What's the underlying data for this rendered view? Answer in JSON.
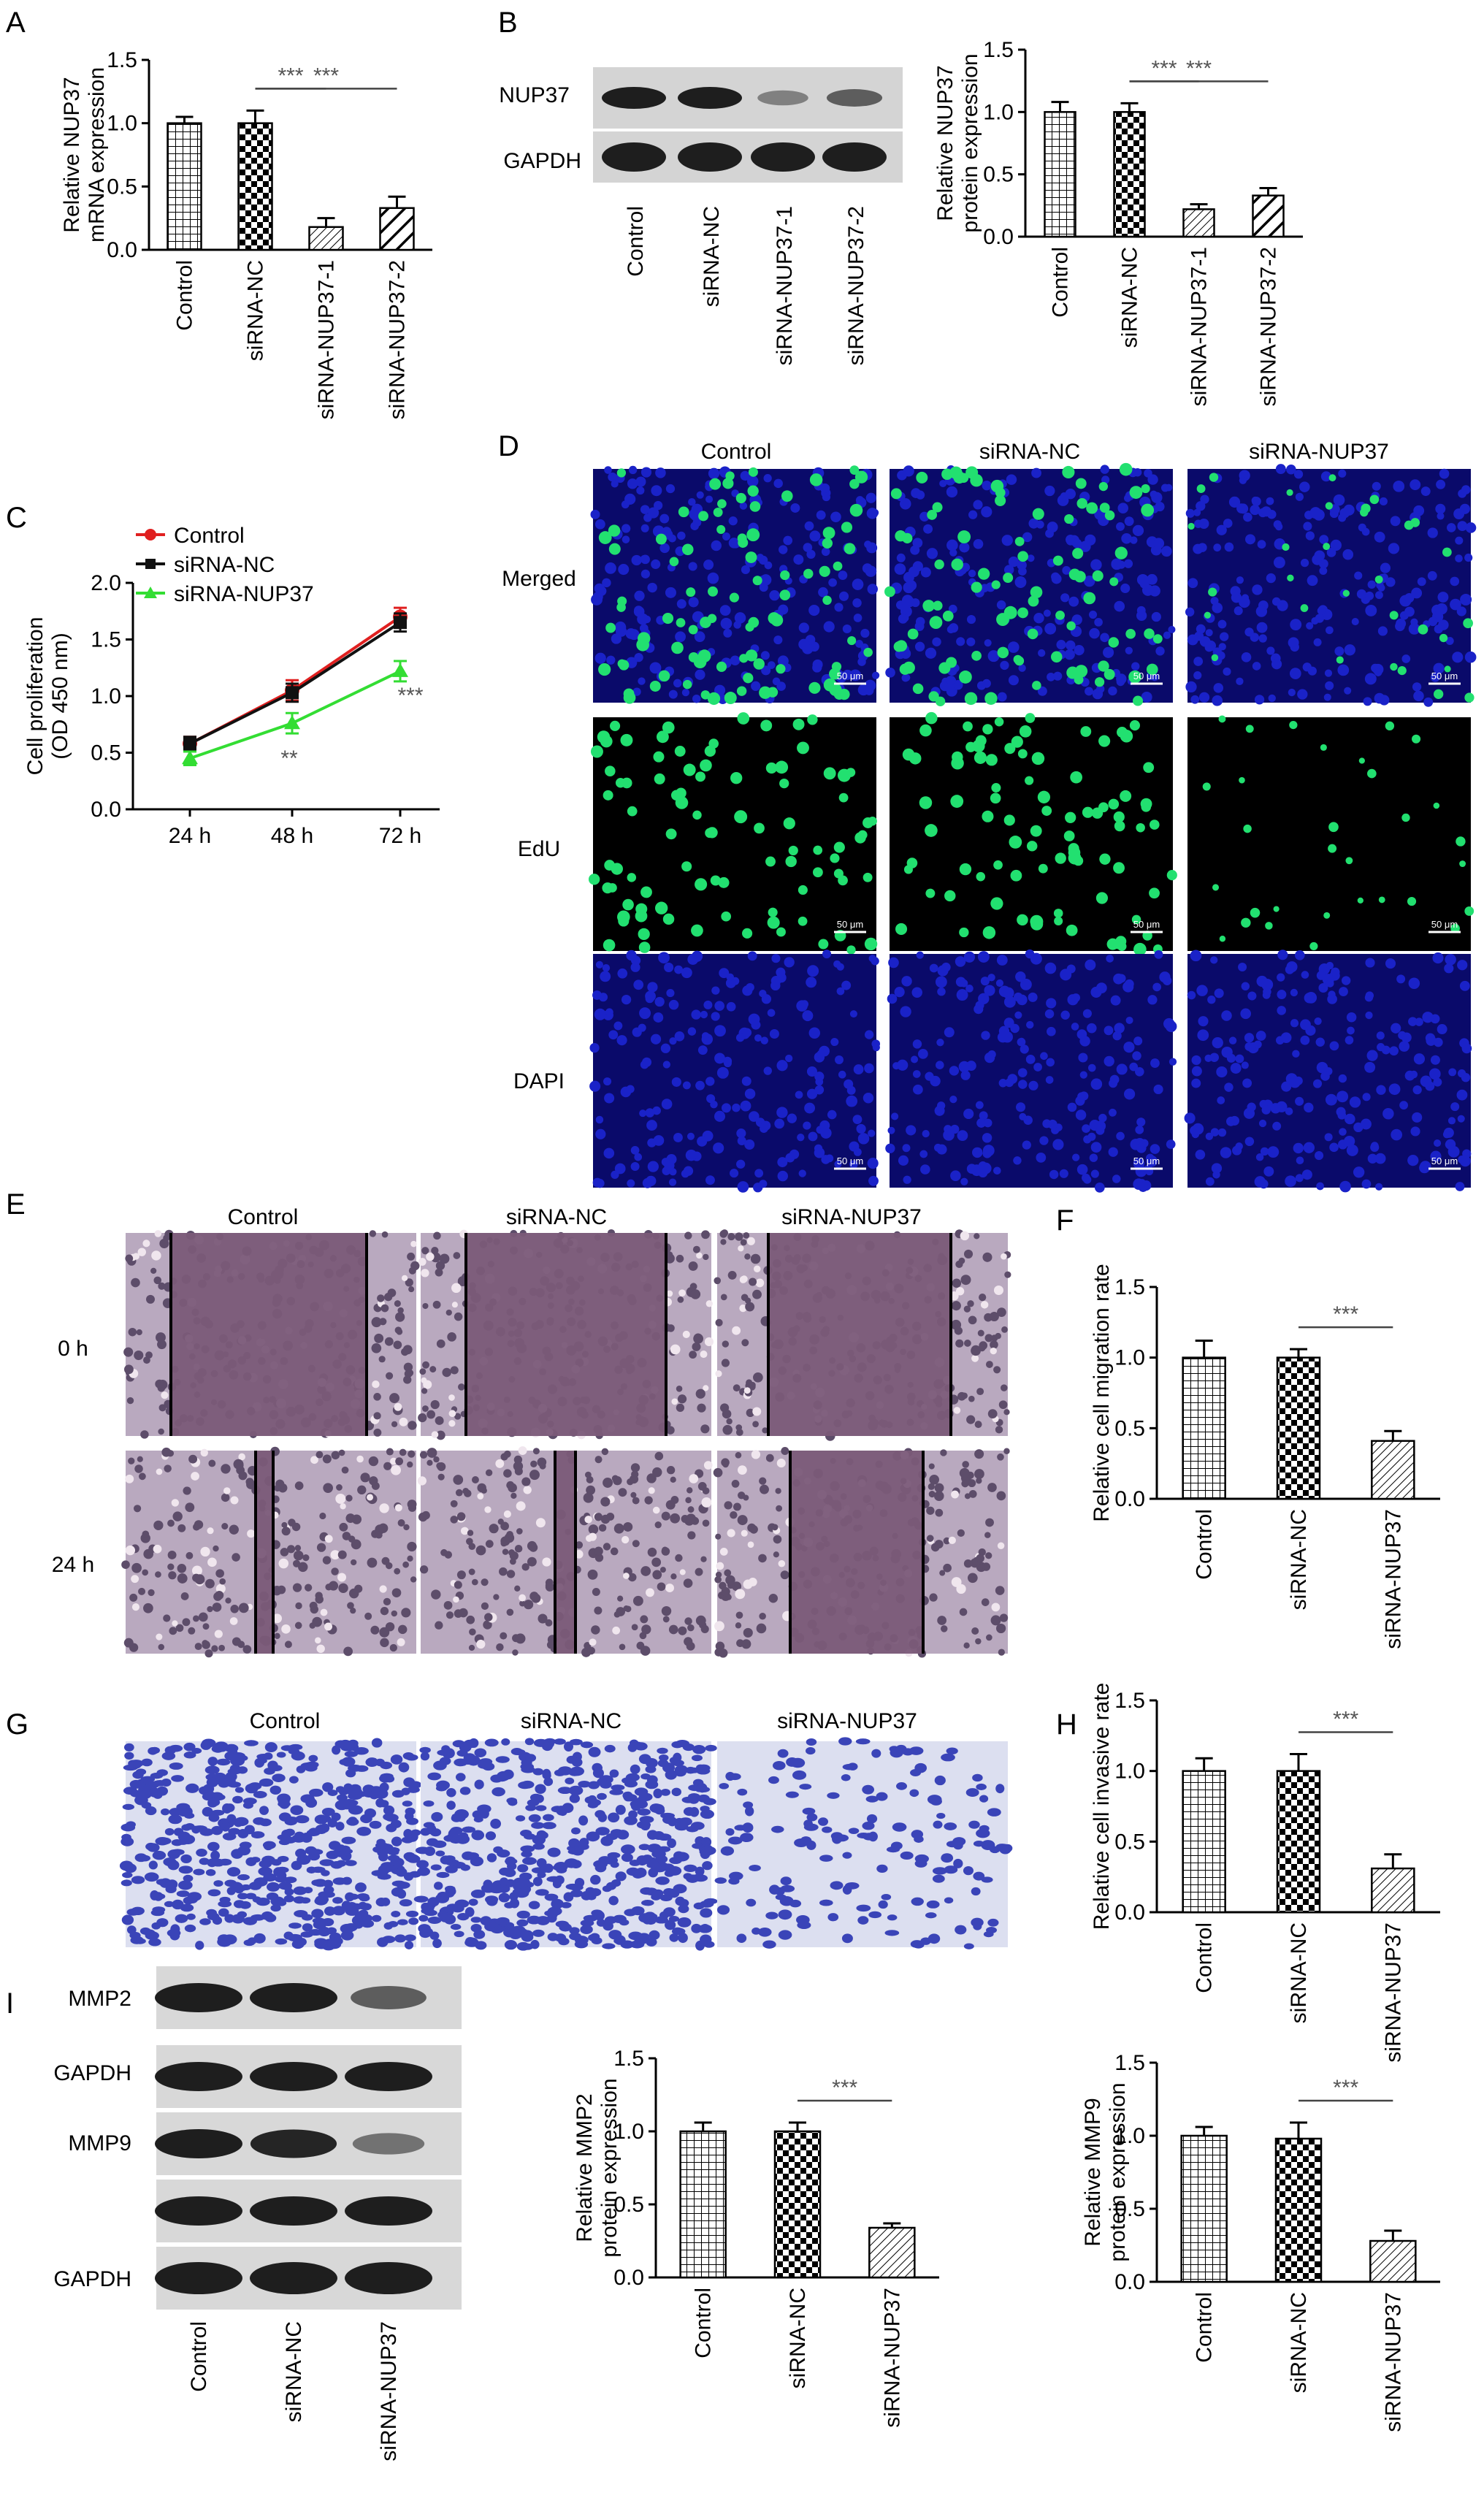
{
  "panels": {
    "A": "A",
    "B": "B",
    "C": "C",
    "D": "D",
    "E": "E",
    "F": "F",
    "G": "G",
    "H": "H",
    "I": "I"
  },
  "colors": {
    "control_line": "#e02020",
    "nc_line": "#111111",
    "nup37_line": "#33dd33",
    "nuclei_blue": "#1a22c8",
    "edu_green": "#22e070",
    "wound_bg": "#7a5a78",
    "crystal_violet": "#3a44b8"
  },
  "blot_B": {
    "rows": [
      "NUP37",
      "GAPDH"
    ],
    "lanes": [
      "Control",
      "siRNA-NC",
      "siRNA-NUP37-1",
      "siRNA-NUP37-2"
    ],
    "intensity": {
      "NUP37": [
        1.0,
        1.0,
        0.3,
        0.55
      ],
      "GAPDH": [
        1.0,
        1.0,
        1.0,
        1.0
      ]
    }
  },
  "fig_D": {
    "columns": [
      "Control",
      "siRNA-NC",
      "siRNA-NUP37"
    ],
    "rows": [
      "Merged",
      "EdU",
      "DAPI"
    ],
    "scale_bar": "50 μm",
    "edu_density": [
      1.0,
      1.0,
      0.35
    ]
  },
  "fig_E": {
    "columns": [
      "Control",
      "siRNA-NC",
      "siRNA-NUP37"
    ],
    "rows": [
      "0 h",
      "24 h"
    ]
  },
  "fig_G": {
    "columns": [
      "Control",
      "siRNA-NC",
      "siRNA-NUP37"
    ],
    "cell_density": [
      1.0,
      1.0,
      0.3
    ]
  },
  "blot_I": {
    "rows": [
      "MMP2",
      "GAPDH",
      "MMP9",
      "GAPDH"
    ],
    "lanes": [
      "Control",
      "siRNA-NC",
      "siRNA-NUP37"
    ],
    "intensity": [
      [
        1.0,
        1.0,
        0.55
      ],
      [
        1.0,
        1.0,
        1.0
      ],
      [
        1.0,
        0.95,
        0.4
      ],
      [
        1.0,
        1.0,
        1.0
      ]
    ]
  },
  "chart_data": [
    {
      "id": "A",
      "type": "bar",
      "categories": [
        "Control",
        "siRNA-NC",
        "siRNA-NUP37-1",
        "siRNA-NUP37-2"
      ],
      "values": [
        1.0,
        1.0,
        0.18,
        0.33
      ],
      "errors": [
        0.05,
        0.1,
        0.07,
        0.09
      ],
      "ylabel": "Relative NUP37\nmRNA expression",
      "ylim": [
        0,
        1.5
      ],
      "yticks": [
        "0.0",
        "0.5",
        "1.0",
        "1.5"
      ],
      "patterns": [
        "grid",
        "checker",
        "hatch-thin",
        "hatch-thick"
      ],
      "significance": [
        {
          "from": 1,
          "to": 2,
          "label": "***"
        },
        {
          "from": 1,
          "to": 3,
          "label": "***"
        }
      ]
    },
    {
      "id": "B",
      "type": "bar",
      "categories": [
        "Control",
        "siRNA-NC",
        "siRNA-NUP37-1",
        "siRNA-NUP37-2"
      ],
      "values": [
        1.0,
        1.0,
        0.22,
        0.33
      ],
      "errors": [
        0.08,
        0.07,
        0.04,
        0.06
      ],
      "ylabel": "Relative NUP37\nprotein expression",
      "ylim": [
        0,
        1.5
      ],
      "yticks": [
        "0.0",
        "0.5",
        "1.0",
        "1.5"
      ],
      "patterns": [
        "grid",
        "checker",
        "hatch-thin",
        "hatch-thick"
      ],
      "significance": [
        {
          "from": 1,
          "to": 2,
          "label": "***"
        },
        {
          "from": 1,
          "to": 3,
          "label": "***"
        }
      ]
    },
    {
      "id": "C",
      "type": "line",
      "x": [
        "24 h",
        "48 h",
        "72 h"
      ],
      "series": [
        {
          "name": "Control",
          "values": [
            0.58,
            1.05,
            1.7
          ],
          "errors": [
            0.06,
            0.09,
            0.08
          ]
        },
        {
          "name": "siRNA-NC",
          "values": [
            0.58,
            1.03,
            1.65
          ],
          "errors": [
            0.06,
            0.08,
            0.08
          ]
        },
        {
          "name": "siRNA-NUP37",
          "values": [
            0.45,
            0.76,
            1.22
          ],
          "errors": [
            0.06,
            0.09,
            0.09
          ]
        }
      ],
      "ylabel": "Cell proliferation\n(OD 450 nm)",
      "ylim": [
        0,
        2.0
      ],
      "yticks": [
        "0.0",
        "0.5",
        "1.0",
        "1.5",
        "2.0"
      ],
      "legend": "top-left",
      "annotations": [
        {
          "x": "48 h",
          "label": "**"
        },
        {
          "x": "72 h",
          "label": "***"
        }
      ]
    },
    {
      "id": "F",
      "type": "bar",
      "categories": [
        "Control",
        "siRNA-NC",
        "siRNA-NUP37"
      ],
      "values": [
        1.0,
        1.0,
        0.41
      ],
      "errors": [
        0.12,
        0.06,
        0.07
      ],
      "ylabel": "Relative cell migration rate",
      "ylim": [
        0,
        1.5
      ],
      "yticks": [
        "0.0",
        "0.5",
        "1.0",
        "1.5"
      ],
      "patterns": [
        "grid",
        "checker",
        "hatch-thin"
      ],
      "significance": [
        {
          "from": 1,
          "to": 2,
          "label": "***"
        }
      ]
    },
    {
      "id": "H",
      "type": "bar",
      "categories": [
        "Control",
        "siRNA-NC",
        "siRNA-NUP37"
      ],
      "values": [
        1.0,
        1.0,
        0.31
      ],
      "errors": [
        0.09,
        0.12,
        0.1
      ],
      "ylabel": "Relative cell invasive rate",
      "ylim": [
        0,
        1.5
      ],
      "yticks": [
        "0.0",
        "0.5",
        "1.0",
        "1.5"
      ],
      "patterns": [
        "grid",
        "checker",
        "hatch-thin"
      ],
      "significance": [
        {
          "from": 1,
          "to": 2,
          "label": "***"
        }
      ]
    },
    {
      "id": "I_MMP2",
      "type": "bar",
      "categories": [
        "Control",
        "siRNA-NC",
        "siRNA-NUP37"
      ],
      "values": [
        1.0,
        1.0,
        0.34
      ],
      "errors": [
        0.06,
        0.06,
        0.03
      ],
      "ylabel": "Relative MMP2\nprotein expression",
      "ylim": [
        0,
        1.5
      ],
      "yticks": [
        "0.0",
        "0.5",
        "1.0",
        "1.5"
      ],
      "patterns": [
        "grid",
        "checker",
        "hatch-thin"
      ],
      "significance": [
        {
          "from": 1,
          "to": 2,
          "label": "***"
        }
      ]
    },
    {
      "id": "I_MMP9",
      "type": "bar",
      "categories": [
        "Control",
        "siRNA-NC",
        "siRNA-NUP37"
      ],
      "values": [
        1.0,
        0.98,
        0.28
      ],
      "errors": [
        0.06,
        0.11,
        0.07
      ],
      "ylabel": "Relative MMP9\nprotein expression",
      "ylim": [
        0,
        1.5
      ],
      "yticks": [
        "0.0",
        "0.5",
        "1.0",
        "1.5"
      ],
      "patterns": [
        "grid",
        "checker",
        "hatch-thin"
      ],
      "significance": [
        {
          "from": 1,
          "to": 2,
          "label": "***"
        }
      ]
    }
  ]
}
